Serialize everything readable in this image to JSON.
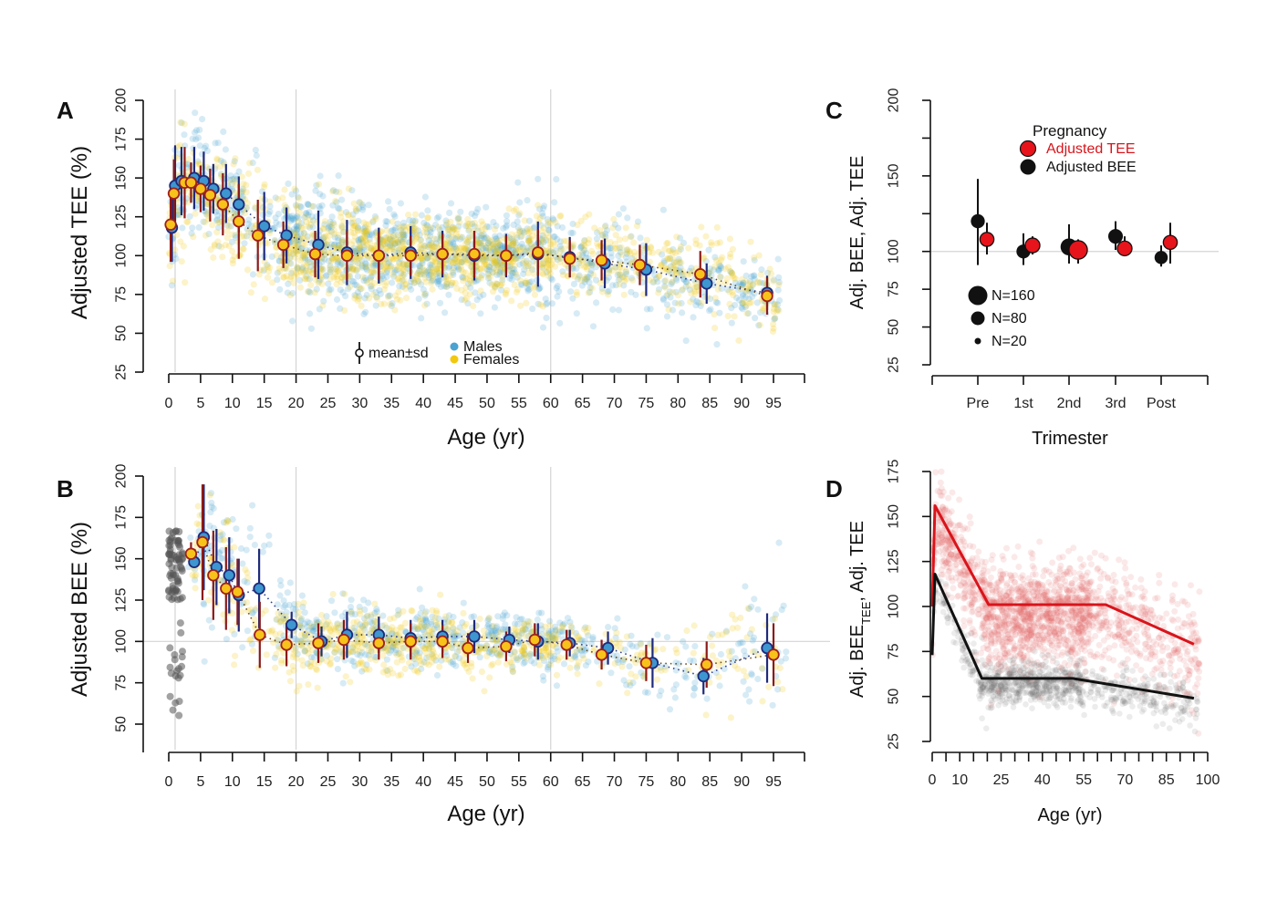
{
  "chart_data": [
    {
      "panel": "A",
      "type": "scatter",
      "ylabel": "Adjusted TEE (%)",
      "xlabel": "Age (yr)",
      "ylim": [
        25,
        200
      ],
      "xlim": [
        0,
        100
      ],
      "yticks": [
        25,
        50,
        75,
        100,
        125,
        150,
        175,
        200
      ],
      "xticks": [
        0,
        5,
        10,
        15,
        20,
        25,
        30,
        35,
        40,
        45,
        50,
        55,
        60,
        65,
        70,
        75,
        80,
        85,
        90,
        95
      ],
      "vlines": [
        1,
        20,
        60
      ],
      "legend": {
        "errorbar": "mean±sd",
        "males": "Males",
        "females": "Females"
      },
      "colors": {
        "males": "#4aa3d0",
        "females": "#f2c80f",
        "male_bar": "#1f2a7a",
        "female_bar": "#8b1a1a"
      },
      "series": [
        {
          "name": "Males",
          "x": [
            0.5,
            1,
            2,
            4,
            5.5,
            7,
            9,
            11,
            15,
            18.5,
            23.5,
            28,
            33,
            38,
            43,
            48,
            53,
            58,
            63,
            68.5,
            75,
            84.5,
            94
          ],
          "mean": [
            118,
            145,
            148,
            150,
            148,
            143,
            140,
            133,
            119,
            113,
            107,
            102,
            100,
            102,
            101,
            100,
            100,
            101,
            99,
            95,
            91,
            82,
            76
          ],
          "sd": [
            22,
            26,
            22,
            20,
            19,
            16,
            19,
            18,
            22,
            18,
            22,
            21,
            18,
            17,
            15,
            16,
            14,
            21,
            13,
            16,
            17,
            13,
            11
          ]
        },
        {
          "name": "Females",
          "x": [
            0.3,
            0.8,
            2.5,
            3.5,
            5,
            6.5,
            8.5,
            11,
            14,
            18,
            23,
            28,
            33,
            38,
            43,
            48,
            53,
            58,
            63,
            68,
            74,
            83.5,
            94
          ],
          "mean": [
            120,
            140,
            147,
            147,
            143,
            139,
            133,
            122,
            113,
            107,
            101,
            100,
            100,
            100,
            101,
            101,
            100,
            102,
            98,
            97,
            94,
            88,
            74
          ],
          "sd": [
            24,
            22,
            23,
            13,
            15,
            17,
            20,
            24,
            23,
            15,
            15,
            16,
            15,
            13,
            13,
            15,
            13,
            15,
            12,
            13,
            13,
            15,
            12
          ]
        }
      ]
    },
    {
      "panel": "B",
      "type": "scatter",
      "ylabel": "Adjusted BEE (%)",
      "xlabel": "Age (yr)",
      "ylim": [
        35,
        200
      ],
      "xlim": [
        0,
        100
      ],
      "yticks": [
        50,
        75,
        100,
        125,
        150,
        175,
        200
      ],
      "xticks": [
        0,
        5,
        10,
        15,
        20,
        25,
        30,
        35,
        40,
        45,
        50,
        55,
        60,
        65,
        70,
        75,
        80,
        85,
        90,
        95
      ],
      "vlines": [
        1,
        20,
        60
      ],
      "hline": 100,
      "infant_points_color": "#555555",
      "series": [
        {
          "name": "Males",
          "x": [
            4,
            5.5,
            7.5,
            9.5,
            11,
            14.2,
            19.3,
            24,
            28,
            33,
            38,
            43,
            48,
            53.5,
            58,
            63,
            69,
            76,
            84,
            94
          ],
          "mean": [
            148,
            163,
            145,
            140,
            128,
            132,
            110,
            100,
            104,
            104,
            102,
            103,
            103,
            101,
            100,
            99,
            96,
            87,
            79,
            96
          ],
          "sd": [
            0,
            32,
            23,
            23,
            22,
            24,
            8,
            9,
            14,
            11,
            11,
            10,
            10,
            8,
            11,
            8,
            10,
            15,
            11,
            21
          ]
        },
        {
          "name": "Females",
          "x": [
            3.5,
            5.3,
            7,
            9,
            10.8,
            14.3,
            18.5,
            23.5,
            27.5,
            33,
            38,
            43,
            47,
            53,
            57.5,
            62.5,
            68,
            75,
            84.5,
            95
          ],
          "mean": [
            153,
            160,
            140,
            132,
            130,
            104,
            98,
            99,
            101,
            99,
            100,
            100,
            96,
            97,
            101,
            98,
            92,
            87,
            86,
            92
          ],
          "sd": [
            7,
            35,
            27,
            25,
            20,
            20,
            13,
            12,
            12,
            10,
            11,
            10,
            9,
            9,
            10,
            9,
            9,
            11,
            14,
            19
          ]
        }
      ]
    },
    {
      "panel": "C",
      "type": "scatter",
      "title": "Pregnancy",
      "ylabel": "Adj. BEE, Adj. TEE",
      "xlabel": "Trimester",
      "ylim": [
        25,
        200
      ],
      "yticks": [
        25,
        50,
        75,
        100,
        125,
        150,
        175,
        200
      ],
      "ytick_labels": [
        "25",
        "50",
        "75",
        "100",
        "",
        "150",
        "",
        "200"
      ],
      "categories": [
        "Pre",
        "1st",
        "2nd",
        "3rd",
        "Post"
      ],
      "hline": 100,
      "legend": {
        "tee": "Adjusted TEE",
        "bee": "Adjusted BEE"
      },
      "size_legend": [
        {
          "label": "N=160",
          "n": 160
        },
        {
          "label": "N=80",
          "n": 80
        },
        {
          "label": "N=20",
          "n": 20
        }
      ],
      "colors": {
        "tee": "#e8141b",
        "bee": "#111111",
        "tee_text": "#d9141b"
      },
      "series": [
        {
          "name": "Adjusted BEE",
          "mean": [
            120,
            100,
            103,
            110,
            96
          ],
          "low": [
            91,
            91,
            92,
            101,
            90
          ],
          "high": [
            148,
            112,
            118,
            120,
            104
          ],
          "n": [
            60,
            60,
            110,
            70,
            50
          ]
        },
        {
          "name": "Adjusted TEE",
          "mean": [
            108,
            104,
            101,
            102,
            106
          ],
          "low": [
            98,
            98,
            92,
            97,
            92
          ],
          "high": [
            119,
            110,
            108,
            110,
            119
          ],
          "n": [
            60,
            70,
            140,
            70,
            60
          ]
        }
      ]
    },
    {
      "panel": "D",
      "type": "line",
      "ylabel": "Adj. BEE",
      "ylabel_sub": "TEE",
      "ylabel_tail": ", Adj. TEE",
      "xlabel": "Age (yr)",
      "ylim": [
        25,
        175
      ],
      "xlim": [
        0,
        100
      ],
      "yticks": [
        25,
        50,
        75,
        100,
        125,
        150,
        175
      ],
      "xtick_labels": [
        0,
        10,
        25,
        40,
        55,
        70,
        85,
        100
      ],
      "xtick_marks": [
        0,
        1,
        5,
        10,
        15,
        20,
        25,
        30,
        35,
        40,
        45,
        50,
        55,
        60,
        65,
        70,
        75,
        80,
        85,
        90,
        95,
        100
      ],
      "colors": {
        "tee": "#d9141b",
        "bee": "#111111",
        "tee_pts": "#e06060",
        "bee_pts": "#666666"
      },
      "series": [
        {
          "name": "Adjusted TEE",
          "x": [
            0,
            1,
            20.5,
            63,
            95
          ],
          "y": [
            100,
            156,
            101,
            101,
            79
          ]
        },
        {
          "name": "Adjusted BEE",
          "x": [
            0,
            1,
            18,
            51,
            95
          ],
          "y": [
            73,
            118,
            60,
            60,
            49
          ]
        }
      ]
    }
  ]
}
